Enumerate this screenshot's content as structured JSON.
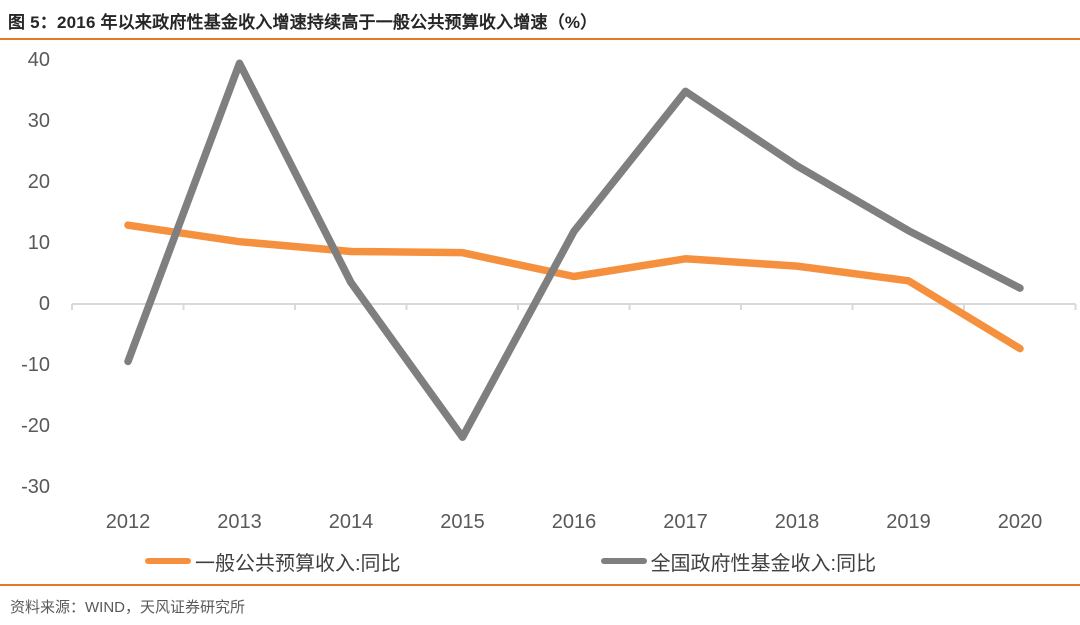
{
  "title": "图 5：2016 年以来政府性基金收入增速持续高于一般公共预算收入增速（%）",
  "source": "资料来源：WIND，天风证券研究所",
  "colors": {
    "accent_orange": "#F5913E",
    "series_gray": "#7F7F7F",
    "rule_orange": "#E87722",
    "axis_line_gray": "#D9D9D9",
    "tick_text_gray": "#595959"
  },
  "chart_data": {
    "type": "line",
    "categories": [
      "2012",
      "2013",
      "2014",
      "2015",
      "2016",
      "2017",
      "2018",
      "2019",
      "2020"
    ],
    "series": [
      {
        "name": "一般公共预算收入:同比",
        "color": "#F5913E",
        "values": [
          12.9,
          10.2,
          8.6,
          8.4,
          4.5,
          7.4,
          6.2,
          3.8,
          -7.3
        ]
      },
      {
        "name": "全国政府性基金收入:同比",
        "color": "#7F7F7F",
        "values": [
          -9.4,
          39.4,
          3.5,
          -21.8,
          11.9,
          34.8,
          22.6,
          12.0,
          2.6
        ]
      }
    ],
    "yticks": [
      40,
      30,
      20,
      10,
      0,
      -10,
      -20,
      -30
    ],
    "ylim": [
      -30,
      40
    ],
    "grid": false,
    "legend_position": "bottom",
    "title": "图 5：2016 年以来政府性基金收入增速持续高于一般公共预算收入增速（%）",
    "xlabel": "",
    "ylabel": ""
  }
}
